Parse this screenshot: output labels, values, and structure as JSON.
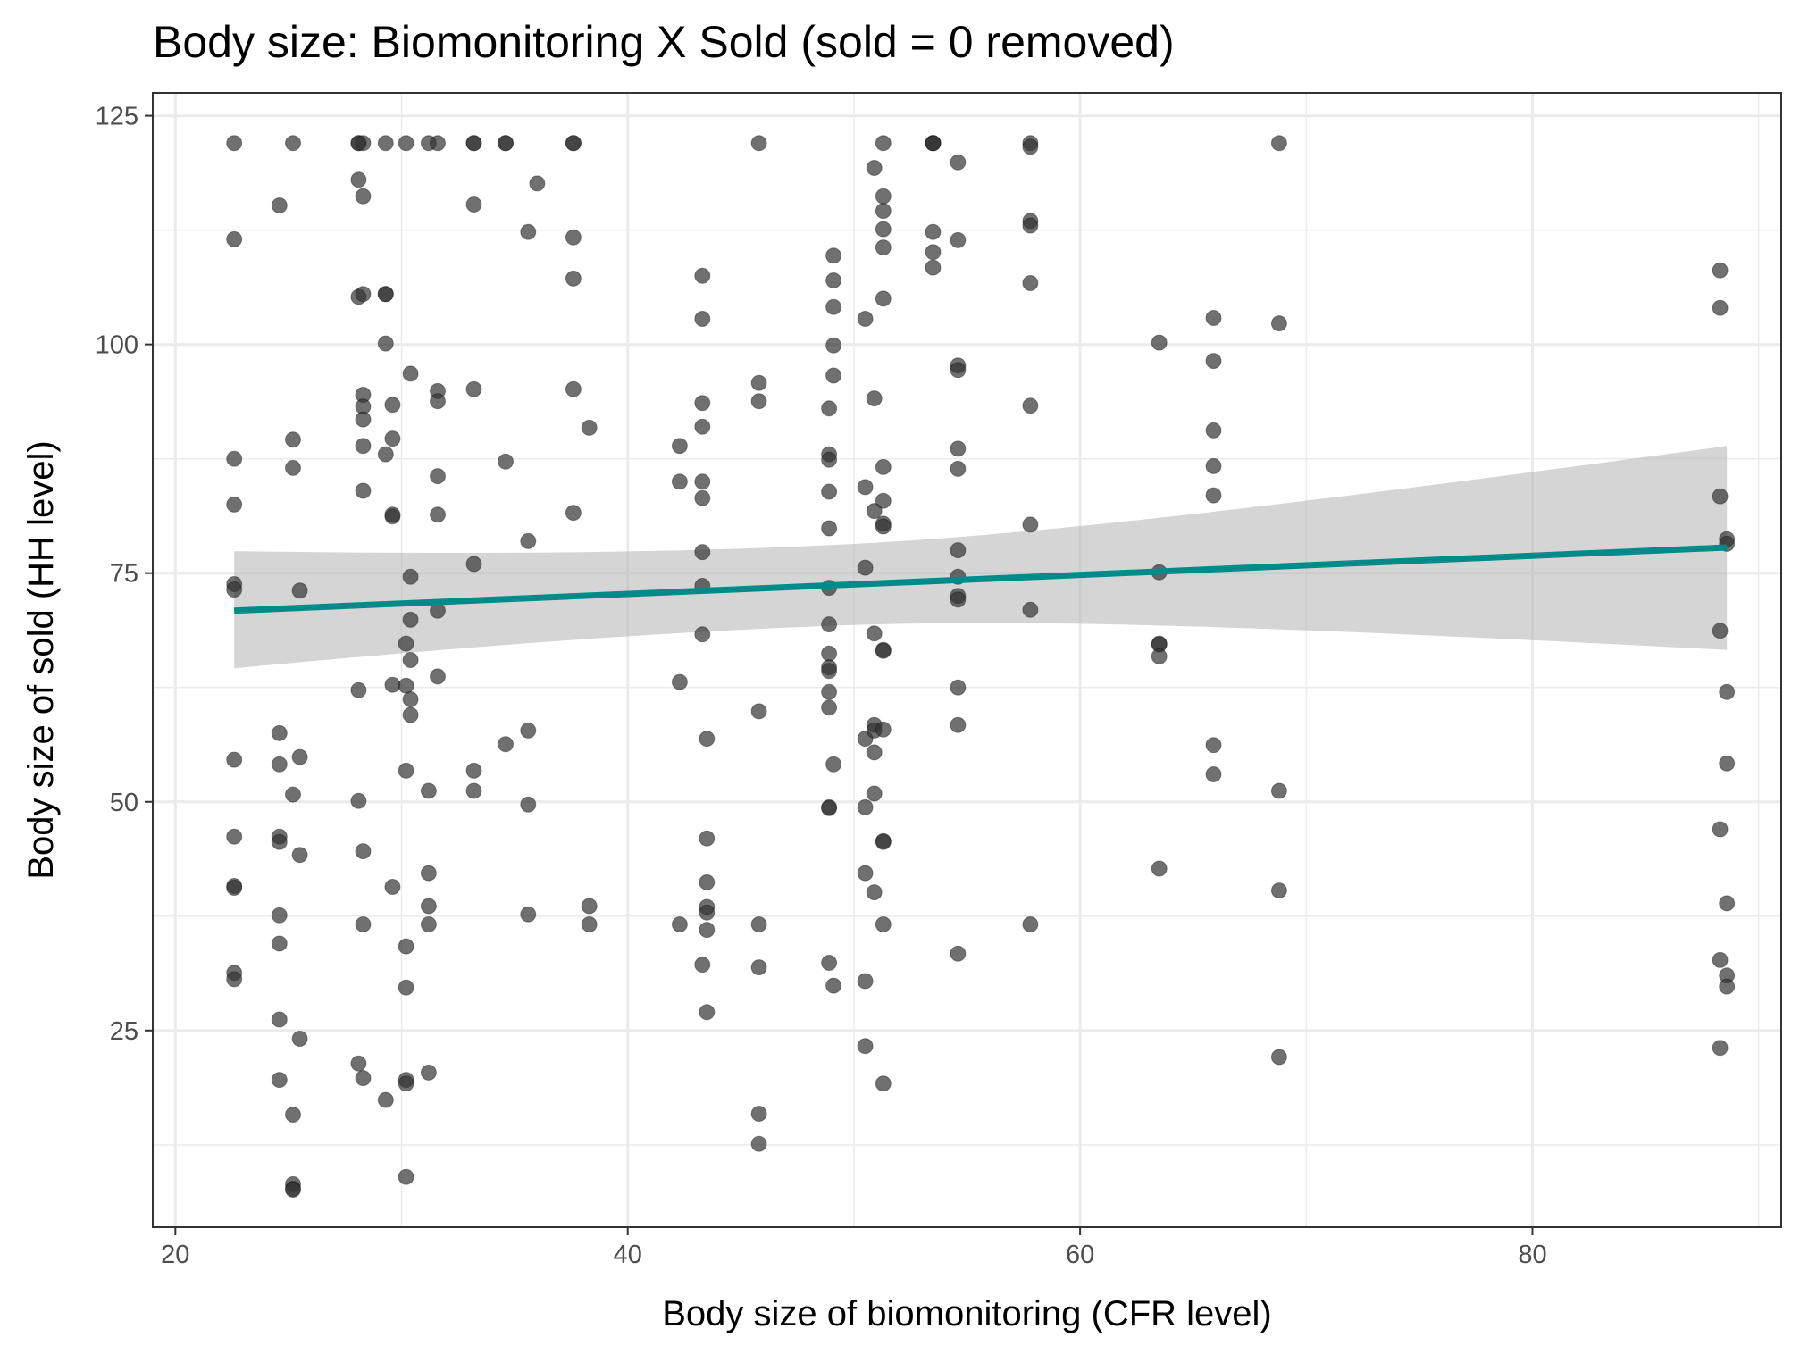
{
  "chart_data": {
    "type": "scatter",
    "title": "Body size: Biomonitoring X Sold (sold = 0 removed)",
    "xlabel": "Body size of biomonitoring (CFR level)",
    "ylabel": "Body size of sold (HH level)",
    "xlim": [
      19,
      91
    ],
    "ylim": [
      3.5,
      127.5
    ],
    "x_ticks": [
      20,
      40,
      60,
      80
    ],
    "y_ticks": [
      25,
      50,
      75,
      100,
      125
    ],
    "x_minor_ticks": [
      30,
      50,
      70,
      90
    ],
    "y_minor_ticks": [
      12.5,
      37.5,
      62.5,
      87.5,
      112.5
    ],
    "grid": true,
    "point_color": "#333333",
    "point_opacity": 0.7,
    "fit": {
      "method": "linear",
      "color": "#008b8b",
      "band_color": "#b3b3b3",
      "x": [
        22.6,
        88.6
      ],
      "y": [
        70.9,
        77.8
      ],
      "band_lower": [
        64.6,
        66.6
      ],
      "band_upper": [
        77.4,
        88.9
      ],
      "band_center": [
        48.0,
        69.4,
        78.2
      ]
    },
    "points": [
      [
        22.6,
        122
      ],
      [
        22.6,
        111.5
      ],
      [
        22.6,
        87.5
      ],
      [
        22.6,
        82.5
      ],
      [
        22.6,
        73.8
      ],
      [
        22.6,
        73.2
      ],
      [
        22.6,
        54.6
      ],
      [
        22.6,
        46.2
      ],
      [
        22.6,
        40.8
      ],
      [
        22.6,
        40.6
      ],
      [
        22.6,
        31.3
      ],
      [
        22.6,
        30.6
      ],
      [
        24.6,
        115.2
      ],
      [
        24.6,
        57.5
      ],
      [
        24.6,
        54.1
      ],
      [
        24.6,
        46.2
      ],
      [
        24.6,
        45.6
      ],
      [
        24.6,
        37.6
      ],
      [
        24.6,
        34.5
      ],
      [
        24.6,
        26.2
      ],
      [
        24.6,
        19.6
      ],
      [
        25.2,
        122
      ],
      [
        25.2,
        89.6
      ],
      [
        25.2,
        86.5
      ],
      [
        25.2,
        50.8
      ],
      [
        25.2,
        15.8
      ],
      [
        25.2,
        8.2
      ],
      [
        25.2,
        7.7
      ],
      [
        25.2,
        7.6
      ],
      [
        25.5,
        73.1
      ],
      [
        25.5,
        54.9
      ],
      [
        25.5,
        44.2
      ],
      [
        25.5,
        24.1
      ],
      [
        28.1,
        122
      ],
      [
        28.1,
        122
      ],
      [
        28.1,
        118
      ],
      [
        28.1,
        105.2
      ],
      [
        28.1,
        62.2
      ],
      [
        28.1,
        50.1
      ],
      [
        28.1,
        21.4
      ],
      [
        28.3,
        122
      ],
      [
        28.3,
        116.2
      ],
      [
        28.3,
        105.5
      ],
      [
        28.3,
        94.5
      ],
      [
        28.3,
        93.2
      ],
      [
        28.3,
        91.8
      ],
      [
        28.3,
        88.9
      ],
      [
        28.3,
        84
      ],
      [
        28.3,
        44.6
      ],
      [
        28.3,
        36.6
      ],
      [
        28.3,
        19.8
      ],
      [
        29.3,
        122
      ],
      [
        29.3,
        105.5
      ],
      [
        29.3,
        105.5
      ],
      [
        29.3,
        100.1
      ],
      [
        29.3,
        88
      ],
      [
        29.3,
        17.4
      ],
      [
        29.6,
        93.4
      ],
      [
        29.6,
        89.7
      ],
      [
        29.6,
        81.2
      ],
      [
        29.6,
        81.4
      ],
      [
        29.6,
        62.8
      ],
      [
        29.6,
        40.7
      ],
      [
        30.2,
        122
      ],
      [
        30.2,
        67.3
      ],
      [
        30.2,
        62.7
      ],
      [
        30.2,
        53.4
      ],
      [
        30.2,
        34.2
      ],
      [
        30.2,
        29.7
      ],
      [
        30.2,
        19.6
      ],
      [
        30.2,
        19.2
      ],
      [
        30.2,
        9
      ],
      [
        30.4,
        96.8
      ],
      [
        30.4,
        74.6
      ],
      [
        30.4,
        69.9
      ],
      [
        30.4,
        65.5
      ],
      [
        30.4,
        61.2
      ],
      [
        30.4,
        59.5
      ],
      [
        31.2,
        122
      ],
      [
        31.2,
        51.2
      ],
      [
        31.2,
        42.2
      ],
      [
        31.2,
        38.6
      ],
      [
        31.2,
        36.6
      ],
      [
        31.2,
        20.4
      ],
      [
        31.6,
        122
      ],
      [
        31.6,
        94.9
      ],
      [
        31.6,
        93.8
      ],
      [
        31.6,
        85.6
      ],
      [
        31.6,
        81.4
      ],
      [
        31.6,
        70.9
      ],
      [
        31.6,
        63.7
      ],
      [
        33.2,
        122
      ],
      [
        33.2,
        122
      ],
      [
        33.2,
        115.3
      ],
      [
        33.2,
        95.1
      ],
      [
        33.2,
        76
      ],
      [
        33.2,
        53.4
      ],
      [
        33.2,
        51.2
      ],
      [
        34.6,
        122
      ],
      [
        34.6,
        122
      ],
      [
        34.6,
        87.2
      ],
      [
        34.6,
        56.3
      ],
      [
        35.6,
        112.3
      ],
      [
        35.6,
        78.5
      ],
      [
        35.6,
        57.8
      ],
      [
        35.6,
        49.7
      ],
      [
        35.6,
        37.7
      ],
      [
        36,
        117.6
      ],
      [
        37.6,
        122
      ],
      [
        37.6,
        122
      ],
      [
        37.6,
        111.7
      ],
      [
        37.6,
        107.2
      ],
      [
        37.6,
        95.1
      ],
      [
        37.6,
        81.6
      ],
      [
        38.3,
        90.9
      ],
      [
        38.3,
        38.6
      ],
      [
        38.3,
        36.6
      ],
      [
        42.3,
        88.9
      ],
      [
        42.3,
        85
      ],
      [
        42.3,
        63.1
      ],
      [
        42.3,
        36.6
      ],
      [
        43.3,
        107.5
      ],
      [
        43.3,
        102.8
      ],
      [
        43.3,
        93.6
      ],
      [
        43.3,
        91
      ],
      [
        43.3,
        85
      ],
      [
        43.3,
        83.2
      ],
      [
        43.3,
        77.3
      ],
      [
        43.3,
        73.6
      ],
      [
        43.3,
        68.3
      ],
      [
        43.3,
        32.2
      ],
      [
        43.5,
        56.9
      ],
      [
        43.5,
        46
      ],
      [
        43.5,
        41.2
      ],
      [
        43.5,
        38.5
      ],
      [
        43.5,
        37.9
      ],
      [
        43.5,
        36
      ],
      [
        43.5,
        27
      ],
      [
        45.8,
        122
      ],
      [
        45.8,
        95.8
      ],
      [
        45.8,
        93.8
      ],
      [
        45.8,
        59.9
      ],
      [
        45.8,
        36.6
      ],
      [
        45.8,
        31.9
      ],
      [
        45.8,
        15.9
      ],
      [
        45.8,
        12.6
      ],
      [
        48.9,
        93
      ],
      [
        48.9,
        88
      ],
      [
        48.9,
        87.4
      ],
      [
        48.9,
        83.9
      ],
      [
        48.9,
        79.9
      ],
      [
        48.9,
        73.4
      ],
      [
        48.9,
        69.4
      ],
      [
        48.9,
        66.2
      ],
      [
        48.9,
        64.7
      ],
      [
        48.9,
        64.3
      ],
      [
        48.9,
        62
      ],
      [
        48.9,
        60.3
      ],
      [
        48.9,
        49.4
      ],
      [
        48.9,
        49.3
      ],
      [
        48.9,
        32.4
      ],
      [
        49.1,
        109.7
      ],
      [
        49.1,
        107
      ],
      [
        49.1,
        104.1
      ],
      [
        49.1,
        99.9
      ],
      [
        49.1,
        96.6
      ],
      [
        49.1,
        54.1
      ],
      [
        49.1,
        29.9
      ],
      [
        50.5,
        102.8
      ],
      [
        50.5,
        84.4
      ],
      [
        50.5,
        75.6
      ],
      [
        50.5,
        56.9
      ],
      [
        50.5,
        49.4
      ],
      [
        50.5,
        42.2
      ],
      [
        50.5,
        30.4
      ],
      [
        50.5,
        23.3
      ],
      [
        50.9,
        119.3
      ],
      [
        50.9,
        94.1
      ],
      [
        50.9,
        81.8
      ],
      [
        50.9,
        68.4
      ],
      [
        50.9,
        58.4
      ],
      [
        50.9,
        57.8
      ],
      [
        50.9,
        55.4
      ],
      [
        50.9,
        50.9
      ],
      [
        50.9,
        40.1
      ],
      [
        51.3,
        122
      ],
      [
        51.3,
        116.2
      ],
      [
        51.3,
        114.6
      ],
      [
        51.3,
        112.6
      ],
      [
        51.3,
        110.6
      ],
      [
        51.3,
        105
      ],
      [
        51.3,
        86.6
      ],
      [
        51.3,
        82.9
      ],
      [
        51.3,
        80.4
      ],
      [
        51.3,
        80.1
      ],
      [
        51.3,
        66.6
      ],
      [
        51.3,
        66.5
      ],
      [
        51.3,
        57.9
      ],
      [
        51.3,
        45.7
      ],
      [
        51.3,
        45.6
      ],
      [
        51.3,
        36.6
      ],
      [
        51.3,
        19.2
      ],
      [
        53.5,
        122
      ],
      [
        53.5,
        122
      ],
      [
        53.5,
        122
      ],
      [
        53.5,
        112.3
      ],
      [
        53.5,
        110.1
      ],
      [
        53.5,
        108.4
      ],
      [
        54.6,
        119.9
      ],
      [
        54.6,
        111.4
      ],
      [
        54.6,
        97.7
      ],
      [
        54.6,
        97.2
      ],
      [
        54.6,
        88.6
      ],
      [
        54.6,
        86.4
      ],
      [
        54.6,
        77.5
      ],
      [
        54.6,
        74.6
      ],
      [
        54.6,
        72.5
      ],
      [
        54.6,
        72.1
      ],
      [
        54.6,
        62.5
      ],
      [
        54.6,
        58.4
      ],
      [
        54.6,
        33.4
      ],
      [
        57.8,
        122
      ],
      [
        57.8,
        121.6
      ],
      [
        57.8,
        113.5
      ],
      [
        57.8,
        113
      ],
      [
        57.8,
        106.7
      ],
      [
        57.8,
        93.3
      ],
      [
        57.8,
        80.3
      ],
      [
        57.8,
        71
      ],
      [
        57.8,
        36.6
      ],
      [
        63.5,
        100.2
      ],
      [
        63.5,
        75.1
      ],
      [
        63.5,
        67.3
      ],
      [
        63.5,
        67.2
      ],
      [
        63.5,
        65.9
      ],
      [
        63.5,
        42.7
      ],
      [
        65.9,
        102.9
      ],
      [
        65.9,
        98.2
      ],
      [
        65.9,
        90.6
      ],
      [
        65.9,
        86.7
      ],
      [
        65.9,
        83.5
      ],
      [
        65.9,
        56.2
      ],
      [
        65.9,
        53
      ],
      [
        68.8,
        122
      ],
      [
        68.8,
        102.3
      ],
      [
        68.8,
        51.2
      ],
      [
        68.8,
        40.3
      ],
      [
        68.8,
        22.1
      ],
      [
        88.3,
        108.1
      ],
      [
        88.3,
        104
      ],
      [
        88.3,
        83.4
      ],
      [
        88.3,
        68.7
      ],
      [
        88.3,
        47
      ],
      [
        88.3,
        32.7
      ],
      [
        88.3,
        23.1
      ],
      [
        88.6,
        78.7
      ],
      [
        88.6,
        78.2
      ],
      [
        88.6,
        62
      ],
      [
        88.6,
        54.2
      ],
      [
        88.6,
        38.9
      ],
      [
        88.6,
        31
      ],
      [
        88.6,
        29.8
      ]
    ]
  }
}
